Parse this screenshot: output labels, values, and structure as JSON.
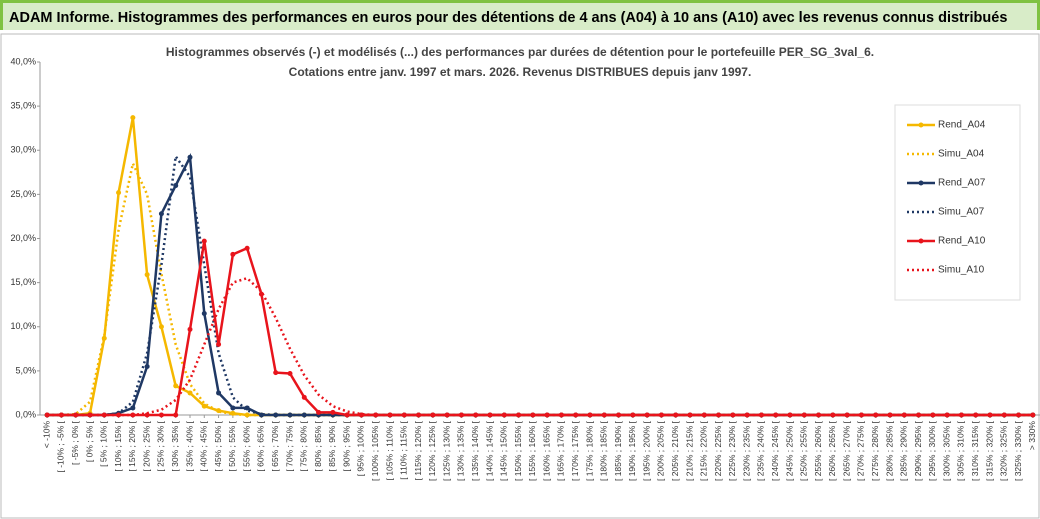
{
  "banner": "ADAM Informe. Histogrammes des performances en euros pour des détentions de 4 ans (A04) à 10 ans (A10) avec les revenus connus distribués",
  "chart_data": {
    "type": "line",
    "title": "Histogrammes observés (-) et modélisés (...) des performances par durées de détention pour le portefeuille PER_SG_3val_6.",
    "subtitle": "Cotations entre janv. 1997 et mars. 2026. Revenus DISTRIBUES depuis janv 1997.",
    "categories": [
      "< -10%",
      "[ -10% ; -5% [",
      "[ -5% ; 0% [",
      "[ 0% ; 5% [",
      "[ 5% ; 10% [",
      "[ 10% ; 15% [",
      "[ 15% ; 20% [",
      "[ 20% ; 25% [",
      "[ 25% ; 30% [",
      "[ 30% ; 35% [",
      "[ 35% ; 40% [",
      "[ 40% ; 45% [",
      "[ 45% ; 50% [",
      "[ 50% ; 55% [",
      "[ 55% ; 60% [",
      "[ 60% ; 65% [",
      "[ 65% ; 70% [",
      "[ 70% ; 75% [",
      "[ 75% ; 80% [",
      "[ 80% ; 85% [",
      "[ 85% ; 90% [",
      "[ 90% ; 95% [",
      "[ 95% ; 100% [",
      "[ 100% ; 105% [",
      "[ 105% ; 110% [",
      "[ 110% ; 115% [",
      "[ 115% ; 120% [",
      "[ 120% ; 125% [",
      "[ 125% ; 130% [",
      "[ 130% ; 135% [",
      "[ 135% ; 140% [",
      "[ 140% ; 145% [",
      "[ 145% ; 150% [",
      "[ 150% ; 155% [",
      "[ 155% ; 160% [",
      "[ 160% ; 165% [",
      "[ 165% ; 170% [",
      "[ 170% ; 175% [",
      "[ 175% ; 180% [",
      "[ 180% ; 185% [",
      "[ 185% ; 190% [",
      "[ 190% ; 195% [",
      "[ 195% ; 200% [",
      "[ 200% ; 205% [",
      "[ 205% ; 210% [",
      "[ 210% ; 215% [",
      "[ 215% ; 220% [",
      "[ 220% ; 225% [",
      "[ 225% ; 230% [",
      "[ 230% ; 235% [",
      "[ 235% ; 240% [",
      "[ 240% ; 245% [",
      "[ 245% ; 250% [",
      "[ 250% ; 255% [",
      "[ 255% ; 260% [",
      "[ 260% ; 265% [",
      "[ 265% ; 270% [",
      "[ 270% ; 275% [",
      "[ 275% ; 280% [",
      "[ 280% ; 285% [",
      "[ 285% ; 290% [",
      "[ 290% ; 295% [",
      "[ 295% ; 300% [",
      "[ 300% ; 305% [",
      "[ 305% ; 310% [",
      "[ 310% ; 315% [",
      "[ 315% ; 320% [",
      "[ 320% ; 325% [",
      "[ 325% ; 330% [",
      "> 330%"
    ],
    "series": [
      {
        "name": "Rend_A04",
        "color": "#f5b800",
        "dotted": false,
        "values": [
          0,
          0,
          0,
          0.2,
          8.7,
          25.2,
          33.7,
          15.9,
          10,
          3.3,
          2.5,
          1,
          0.5,
          0.2,
          0,
          0,
          0,
          0,
          0,
          0,
          0,
          0,
          0,
          0,
          0,
          0,
          0,
          0,
          0,
          0,
          0,
          0,
          0,
          0,
          0,
          0,
          0,
          0,
          0,
          0,
          0,
          0,
          0,
          0,
          0,
          0,
          0,
          0,
          0,
          0,
          0,
          0,
          0,
          0,
          0,
          0,
          0,
          0,
          0,
          0,
          0,
          0,
          0,
          0,
          0,
          0,
          0,
          0,
          0,
          0
        ]
      },
      {
        "name": "Simu_A04",
        "color": "#f5b800",
        "dotted": true,
        "values": [
          0,
          0,
          0.1,
          1.5,
          9,
          21,
          28.5,
          25,
          16,
          8,
          3.5,
          1.3,
          0.4,
          0.1,
          0,
          0,
          0,
          0,
          0,
          0,
          0,
          0,
          0,
          0,
          0,
          0,
          0,
          0,
          0,
          0,
          0,
          0,
          0,
          0,
          0,
          0,
          0,
          0,
          0,
          0,
          0,
          0,
          0,
          0,
          0,
          0,
          0,
          0,
          0,
          0,
          0,
          0,
          0,
          0,
          0,
          0,
          0,
          0,
          0,
          0,
          0,
          0,
          0,
          0,
          0,
          0,
          0,
          0,
          0,
          0
        ]
      },
      {
        "name": "Rend_A07",
        "color": "#1f3864",
        "dotted": false,
        "values": [
          0,
          0,
          0,
          0,
          0,
          0.2,
          0.8,
          5.5,
          22.8,
          26,
          29.2,
          11.5,
          2.5,
          0.8,
          0.8,
          0,
          0,
          0,
          0,
          0,
          0,
          0,
          0,
          0,
          0,
          0,
          0,
          0,
          0,
          0,
          0,
          0,
          0,
          0,
          0,
          0,
          0,
          0,
          0,
          0,
          0,
          0,
          0,
          0,
          0,
          0,
          0,
          0,
          0,
          0,
          0,
          0,
          0,
          0,
          0,
          0,
          0,
          0,
          0,
          0,
          0,
          0,
          0,
          0,
          0,
          0,
          0,
          0,
          0,
          0
        ]
      },
      {
        "name": "Simu_A07",
        "color": "#1f3864",
        "dotted": true,
        "values": [
          0,
          0,
          0,
          0,
          0,
          0.2,
          1.5,
          7,
          17,
          29.3,
          27,
          17,
          7,
          2,
          0.5,
          0.1,
          0,
          0,
          0,
          0,
          0,
          0,
          0,
          0,
          0,
          0,
          0,
          0,
          0,
          0,
          0,
          0,
          0,
          0,
          0,
          0,
          0,
          0,
          0,
          0,
          0,
          0,
          0,
          0,
          0,
          0,
          0,
          0,
          0,
          0,
          0,
          0,
          0,
          0,
          0,
          0,
          0,
          0,
          0,
          0,
          0,
          0,
          0,
          0,
          0,
          0,
          0,
          0,
          0,
          0
        ]
      },
      {
        "name": "Rend_A10",
        "color": "#e8141c",
        "dotted": false,
        "values": [
          0,
          0,
          0,
          0,
          0,
          0,
          0,
          0,
          0,
          0,
          9.7,
          19.7,
          8,
          18.2,
          18.9,
          13.7,
          4.8,
          4.7,
          2,
          0.3,
          0.3,
          0,
          0,
          0,
          0,
          0,
          0,
          0,
          0,
          0,
          0,
          0,
          0,
          0,
          0,
          0,
          0,
          0,
          0,
          0,
          0,
          0,
          0,
          0,
          0,
          0,
          0,
          0,
          0,
          0,
          0,
          0,
          0,
          0,
          0,
          0,
          0,
          0,
          0,
          0,
          0,
          0,
          0,
          0,
          0,
          0,
          0,
          0,
          0,
          0
        ]
      },
      {
        "name": "Simu_A10",
        "color": "#e8141c",
        "dotted": true,
        "values": [
          0,
          0,
          0,
          0,
          0,
          0,
          0,
          0.2,
          0.6,
          1.7,
          4,
          8,
          12,
          15,
          15.5,
          14,
          11,
          7.5,
          4.5,
          2.3,
          1,
          0.4,
          0.1,
          0,
          0,
          0,
          0,
          0,
          0,
          0,
          0,
          0,
          0,
          0,
          0,
          0,
          0,
          0,
          0,
          0,
          0,
          0,
          0,
          0,
          0,
          0,
          0,
          0,
          0,
          0,
          0,
          0,
          0,
          0,
          0,
          0,
          0,
          0,
          0,
          0,
          0,
          0,
          0,
          0,
          0,
          0,
          0,
          0,
          0,
          0
        ]
      }
    ],
    "ylim": [
      0,
      40
    ],
    "yticks": [
      {
        "value": 0,
        "label": "0,0%"
      },
      {
        "value": 5,
        "label": "5,0%"
      },
      {
        "value": 10,
        "label": "10,0%"
      },
      {
        "value": 15,
        "label": "15,0%"
      },
      {
        "value": 20,
        "label": "20,0%"
      },
      {
        "value": 25,
        "label": "25,0%"
      },
      {
        "value": 30,
        "label": "30,0%"
      },
      {
        "value": 35,
        "label": "35,0%"
      },
      {
        "value": 40,
        "label": "40,0%"
      }
    ],
    "grid": false,
    "legend": "right"
  }
}
